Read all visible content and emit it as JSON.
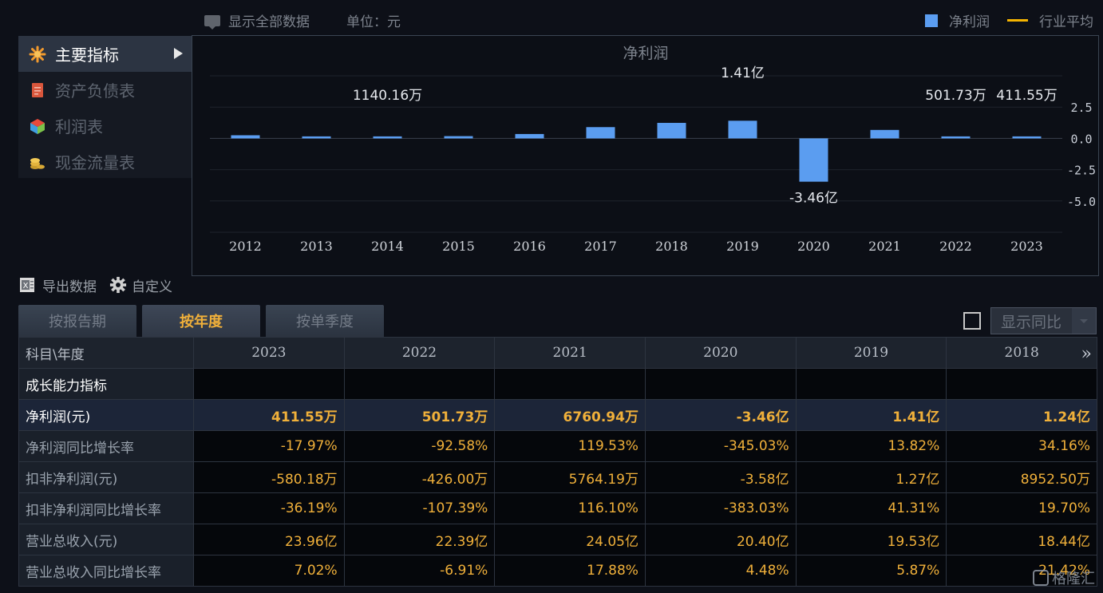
{
  "topbar": {
    "show_all_label": "显示全部数据",
    "unit_label": "单位：元",
    "legend_net_profit": "净利润",
    "legend_industry_avg": "行业平均"
  },
  "colors": {
    "bar": "#5b9df0",
    "industry_line": "#f5b400",
    "accent": "#f0b03a"
  },
  "nav": {
    "items": [
      {
        "label": "主要指标",
        "icon": "asterisk-icon",
        "active": true
      },
      {
        "label": "资产负债表",
        "icon": "document-icon",
        "active": false
      },
      {
        "label": "利润表",
        "icon": "cube-icon",
        "active": false
      },
      {
        "label": "现金流量表",
        "icon": "coins-icon",
        "active": false
      }
    ]
  },
  "chart_data": {
    "type": "bar",
    "title": "净利润",
    "categories": [
      "2012",
      "2013",
      "2014",
      "2015",
      "2016",
      "2017",
      "2018",
      "2019",
      "2020",
      "2021",
      "2022",
      "2023"
    ],
    "series": [
      {
        "name": "净利润",
        "values": [
          0.25,
          0.15,
          0.114,
          0.18,
          0.35,
          0.9,
          1.24,
          1.41,
          -3.46,
          0.676,
          0.0502,
          0.0412
        ]
      }
    ],
    "value_unit": "亿",
    "y_ticks": [
      "2.5",
      "0.0",
      "-2.5",
      "-5.0"
    ],
    "y_tick_values": [
      2.5,
      0,
      -2.5,
      -5.0
    ],
    "ylim": [
      -7.5,
      5.0
    ],
    "data_labels": [
      {
        "index": 2,
        "text": "1140.16万"
      },
      {
        "index": 7,
        "text": "1.41亿"
      },
      {
        "index": 8,
        "text": "-3.46亿"
      },
      {
        "index": 10,
        "text": "501.73万"
      },
      {
        "index": 11,
        "text": "411.55万"
      }
    ],
    "grid": true,
    "legend_position": "top-right"
  },
  "toolbar": {
    "export_label": "导出数据",
    "custom_label": "自定义"
  },
  "tabs": [
    {
      "label": "按报告期",
      "active": false
    },
    {
      "label": "按年度",
      "active": true
    },
    {
      "label": "按单季度",
      "active": false
    }
  ],
  "yoy": {
    "label": "显示同比"
  },
  "table": {
    "header_first": "科目\\年度",
    "years": [
      "2023",
      "2022",
      "2021",
      "2020",
      "2019",
      "2018"
    ],
    "more_label": "»",
    "rows": [
      {
        "label": "成长能力指标",
        "values": [
          "",
          "",
          "",
          "",
          "",
          ""
        ],
        "type": "section"
      },
      {
        "label": "净利润(元)",
        "values": [
          "411.55万",
          "501.73万",
          "6760.94万",
          "-3.46亿",
          "1.41亿",
          "1.24亿"
        ],
        "type": "highlight"
      },
      {
        "label": "净利润同比增长率",
        "values": [
          "-17.97%",
          "-92.58%",
          "119.53%",
          "-345.03%",
          "13.82%",
          "34.16%"
        ],
        "type": "normal"
      },
      {
        "label": "扣非净利润(元)",
        "values": [
          "-580.18万",
          "-426.00万",
          "5764.19万",
          "-3.58亿",
          "1.27亿",
          "8952.50万"
        ],
        "type": "normal"
      },
      {
        "label": "扣非净利润同比增长率",
        "values": [
          "-36.19%",
          "-107.39%",
          "116.10%",
          "-383.03%",
          "41.31%",
          "19.70%"
        ],
        "type": "normal"
      },
      {
        "label": "营业总收入(元)",
        "values": [
          "23.96亿",
          "22.39亿",
          "24.05亿",
          "20.40亿",
          "19.53亿",
          "18.44亿"
        ],
        "type": "normal"
      },
      {
        "label": "营业总收入同比增长率",
        "values": [
          "7.02%",
          "-6.91%",
          "17.88%",
          "4.48%",
          "5.87%",
          "21.42%"
        ],
        "type": "normal"
      }
    ]
  },
  "watermark": {
    "text": "格隆汇"
  }
}
